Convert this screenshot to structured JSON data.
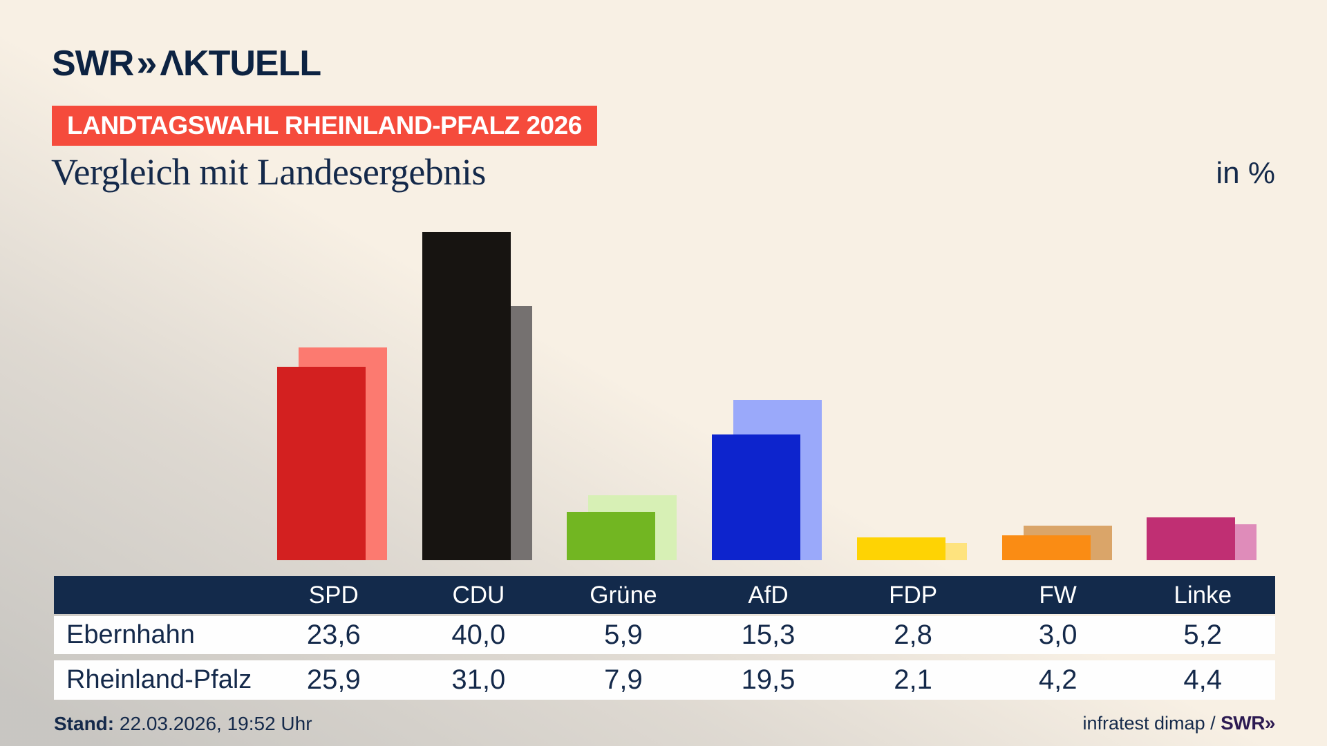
{
  "header": {
    "logo_text": "SWR",
    "logo_chevrons": "»",
    "logo_suffix": "ΛKTUELL",
    "badge": "LANDTAGSWAHL RHEINLAND-PFALZ 2026"
  },
  "title": "Vergleich mit Landesergebnis",
  "unit_label": "in %",
  "chart_data": {
    "type": "bar",
    "title": "Vergleich mit Landesergebnis",
    "ylabel": "in %",
    "ylim": [
      0,
      42
    ],
    "grid": false,
    "legend": "none",
    "categories": [
      "SPD",
      "CDU",
      "Grüne",
      "AfD",
      "FDP",
      "FW",
      "Linke"
    ],
    "series": [
      {
        "name": "Ebernhahn",
        "values": [
          23.6,
          40.0,
          5.9,
          15.3,
          2.8,
          3.0,
          5.2
        ]
      },
      {
        "name": "Rheinland-Pfalz",
        "values": [
          25.9,
          31.0,
          7.9,
          19.5,
          2.1,
          4.2,
          4.4
        ]
      }
    ],
    "colors": [
      {
        "category": "SPD",
        "solid": "#d32020",
        "light": "#fc7a70"
      },
      {
        "category": "CDU",
        "solid": "#171411",
        "light": "#757170"
      },
      {
        "category": "Grüne",
        "solid": "#72b622",
        "light": "#d7f0b5"
      },
      {
        "category": "AfD",
        "solid": "#0d24cd",
        "light": "#9aa9fa"
      },
      {
        "category": "FDP",
        "solid": "#fed304",
        "light": "#fee37e"
      },
      {
        "category": "FW",
        "solid": "#fa8c14",
        "light": "#daa569"
      },
      {
        "category": "Linke",
        "solid": "#c02f73",
        "light": "#df8cba"
      }
    ]
  },
  "table": {
    "columns": [
      "SPD",
      "CDU",
      "Grüne",
      "AfD",
      "FDP",
      "FW",
      "Linke"
    ],
    "rows": [
      {
        "label": "Ebernhahn",
        "values": [
          "23,6",
          "40,0",
          "5,9",
          "15,3",
          "2,8",
          "3,0",
          "5,2"
        ]
      },
      {
        "label": "Rheinland-Pfalz",
        "values": [
          "25,9",
          "31,0",
          "7,9",
          "19,5",
          "2,1",
          "4,2",
          "4,4"
        ]
      }
    ]
  },
  "footer": {
    "stand_label": "Stand:",
    "stand_value": " 22.03.2026, 19:52 Uhr",
    "source_prefix": "infratest dimap / ",
    "source_logo": "SWR»"
  },
  "palette": {
    "background_beige": "#f8f0e4",
    "background_gray": "#c8c6c2",
    "navy": "#14294a",
    "badge_red": "#f54b3c",
    "swr_purple": "#2d1b52"
  }
}
